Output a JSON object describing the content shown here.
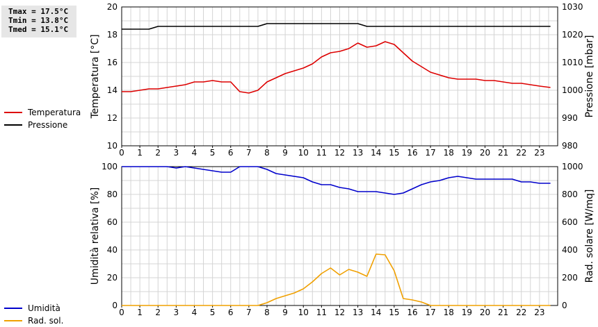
{
  "stats": {
    "tmax": "Tmax = 17.5°C",
    "tmin": "Tmin = 13.8°C",
    "tmed": "Tmed = 15.1°C"
  },
  "chart_data": [
    {
      "type": "line",
      "ylabel": "Temperatura [°C]",
      "y2label": "Pressione [mbar]",
      "ylim": [
        10,
        20
      ],
      "y2lim": [
        980,
        1030
      ],
      "yticks": [
        10,
        12,
        14,
        16,
        18,
        20
      ],
      "y2ticks": [
        980,
        990,
        1000,
        1010,
        1020,
        1030
      ],
      "xlim": [
        0,
        24
      ],
      "xticks": [
        0,
        1,
        2,
        3,
        4,
        5,
        6,
        7,
        8,
        9,
        10,
        11,
        12,
        13,
        14,
        15,
        16,
        17,
        18,
        19,
        20,
        21,
        22,
        23
      ],
      "grid": true,
      "legend_position": "left",
      "series": [
        {
          "name": "Temperatura",
          "axis": "left",
          "color": "#dd0000",
          "x": [
            0,
            0.5,
            1,
            1.5,
            2,
            2.5,
            3,
            3.5,
            4,
            4.5,
            5,
            5.5,
            6,
            6.5,
            7,
            7.5,
            8,
            8.5,
            9,
            9.5,
            10,
            10.5,
            11,
            11.5,
            12,
            12.5,
            13,
            13.5,
            14,
            14.5,
            15,
            15.5,
            16,
            16.5,
            17,
            17.5,
            18,
            18.5,
            19,
            19.5,
            20,
            20.5,
            21,
            21.5,
            22,
            22.5,
            23,
            23.6
          ],
          "values": [
            13.9,
            13.9,
            14.0,
            14.1,
            14.1,
            14.2,
            14.3,
            14.4,
            14.6,
            14.6,
            14.7,
            14.6,
            14.6,
            13.9,
            13.8,
            14.0,
            14.6,
            14.9,
            15.2,
            15.4,
            15.6,
            15.9,
            16.4,
            16.7,
            16.8,
            17.0,
            17.4,
            17.1,
            17.2,
            17.5,
            17.3,
            16.7,
            16.1,
            15.7,
            15.3,
            15.1,
            14.9,
            14.8,
            14.8,
            14.8,
            14.7,
            14.7,
            14.6,
            14.5,
            14.5,
            14.4,
            14.3,
            14.2
          ]
        },
        {
          "name": "Pressione",
          "axis": "right",
          "color": "#000000",
          "x": [
            0,
            1.5,
            2,
            7.5,
            8,
            13,
            13.5,
            23.6
          ],
          "values": [
            1022,
            1022,
            1023,
            1023,
            1024,
            1024,
            1023,
            1023
          ]
        }
      ]
    },
    {
      "type": "line",
      "ylabel": "Umidità relativa [%]",
      "y2label": "Rad. solare [W/mq]",
      "ylim": [
        0,
        100
      ],
      "y2lim": [
        0,
        1000
      ],
      "yticks": [
        0,
        20,
        40,
        60,
        80,
        100
      ],
      "y2ticks": [
        0,
        200,
        400,
        600,
        800,
        1000
      ],
      "xlim": [
        0,
        24
      ],
      "xticks": [
        0,
        1,
        2,
        3,
        4,
        5,
        6,
        7,
        8,
        9,
        10,
        11,
        12,
        13,
        14,
        15,
        16,
        17,
        18,
        19,
        20,
        21,
        22,
        23
      ],
      "grid": true,
      "legend_position": "left",
      "series": [
        {
          "name": "Umidità",
          "axis": "left",
          "color": "#0000cc",
          "x": [
            0,
            1,
            2,
            2.5,
            3,
            3.5,
            4,
            5,
            5.5,
            6,
            6.5,
            7,
            7.5,
            8,
            8.5,
            9,
            10,
            10.5,
            11,
            11.5,
            12,
            12.5,
            13,
            14,
            14.5,
            15,
            15.5,
            16,
            16.5,
            17,
            17.5,
            18,
            18.5,
            19,
            19.5,
            20,
            21,
            21.5,
            22,
            22.5,
            23,
            23.6
          ],
          "values": [
            100,
            100,
            100,
            100,
            99,
            100,
            99,
            97,
            96,
            96,
            100,
            100,
            100,
            98,
            95,
            94,
            92,
            89,
            87,
            87,
            85,
            84,
            82,
            82,
            81,
            80,
            81,
            84,
            87,
            89,
            90,
            92,
            93,
            92,
            91,
            91,
            91,
            91,
            89,
            89,
            88,
            88
          ]
        },
        {
          "name": "Rad. sol.",
          "axis": "right",
          "color": "#f0a000",
          "x": [
            0,
            7.5,
            8,
            8.5,
            9,
            9.5,
            10,
            10.5,
            11,
            11.5,
            12,
            12.5,
            13,
            13.5,
            14,
            14.5,
            15,
            15.5,
            16,
            16.5,
            17,
            23.6
          ],
          "values": [
            0,
            0,
            20,
            50,
            70,
            90,
            120,
            170,
            230,
            270,
            220,
            260,
            240,
            210,
            370,
            365,
            250,
            50,
            40,
            25,
            0,
            0
          ]
        }
      ]
    }
  ]
}
